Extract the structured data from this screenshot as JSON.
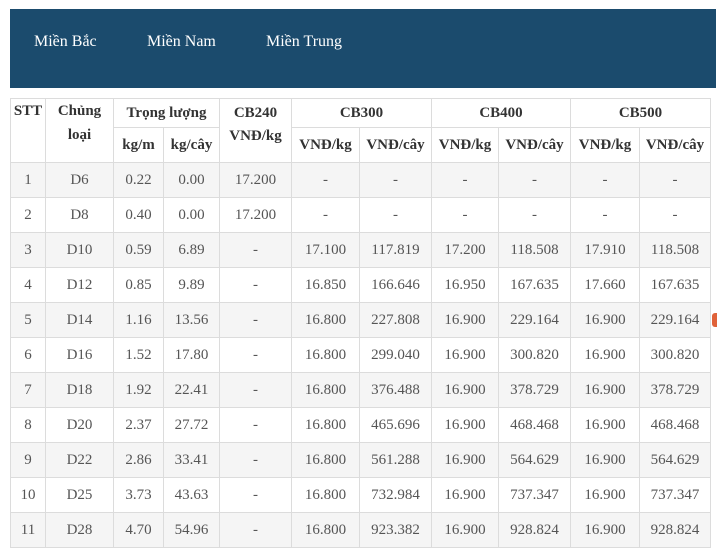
{
  "tabs": [
    {
      "label": "Miền Bắc"
    },
    {
      "label": "Miền Nam"
    },
    {
      "label": "Miền Trung"
    }
  ],
  "table": {
    "headers": {
      "stt": "STT",
      "chungloai": "Chủng loại",
      "trongluong": "Trọng lượng",
      "kg_m": "kg/m",
      "kg_cay": "kg/cây",
      "cb240": "CB240",
      "cb240_unit": "VNĐ/kg",
      "cb300": "CB300",
      "cb400": "CB400",
      "cb500": "CB500",
      "vnd_kg": "VNĐ/kg",
      "vnd_cay": "VNĐ/cây"
    },
    "rows": [
      [
        "1",
        "D6",
        "0.22",
        "0.00",
        "17.200",
        "-",
        "-",
        "-",
        "-",
        "-",
        "-"
      ],
      [
        "2",
        "D8",
        "0.40",
        "0.00",
        "17.200",
        "-",
        "-",
        "-",
        "-",
        "-",
        "-"
      ],
      [
        "3",
        "D10",
        "0.59",
        "6.89",
        "-",
        "17.100",
        "117.819",
        "17.200",
        "118.508",
        "17.910",
        "118.508"
      ],
      [
        "4",
        "D12",
        "0.85",
        "9.89",
        "-",
        "16.850",
        "166.646",
        "16.950",
        "167.635",
        "17.660",
        "167.635"
      ],
      [
        "5",
        "D14",
        "1.16",
        "13.56",
        "-",
        "16.800",
        "227.808",
        "16.900",
        "229.164",
        "16.900",
        "229.164"
      ],
      [
        "6",
        "D16",
        "1.52",
        "17.80",
        "-",
        "16.800",
        "299.040",
        "16.900",
        "300.820",
        "16.900",
        "300.820"
      ],
      [
        "7",
        "D18",
        "1.92",
        "22.41",
        "-",
        "16.800",
        "376.488",
        "16.900",
        "378.729",
        "16.900",
        "378.729"
      ],
      [
        "8",
        "D20",
        "2.37",
        "27.72",
        "-",
        "16.800",
        "465.696",
        "16.900",
        "468.468",
        "16.900",
        "468.468"
      ],
      [
        "9",
        "D22",
        "2.86",
        "33.41",
        "-",
        "16.800",
        "561.288",
        "16.900",
        "564.629",
        "16.900",
        "564.629"
      ],
      [
        "10",
        "D25",
        "3.73",
        "43.63",
        "-",
        "16.800",
        "732.984",
        "16.900",
        "737.347",
        "16.900",
        "737.347"
      ],
      [
        "11",
        "D28",
        "4.70",
        "54.96",
        "-",
        "16.800",
        "923.382",
        "16.900",
        "928.824",
        "16.900",
        "928.824"
      ]
    ]
  },
  "colors": {
    "header_bar": "#1b4b6d",
    "row_odd": "#f5f5f5",
    "row_even": "#ffffff",
    "border": "#dcdcdc"
  }
}
